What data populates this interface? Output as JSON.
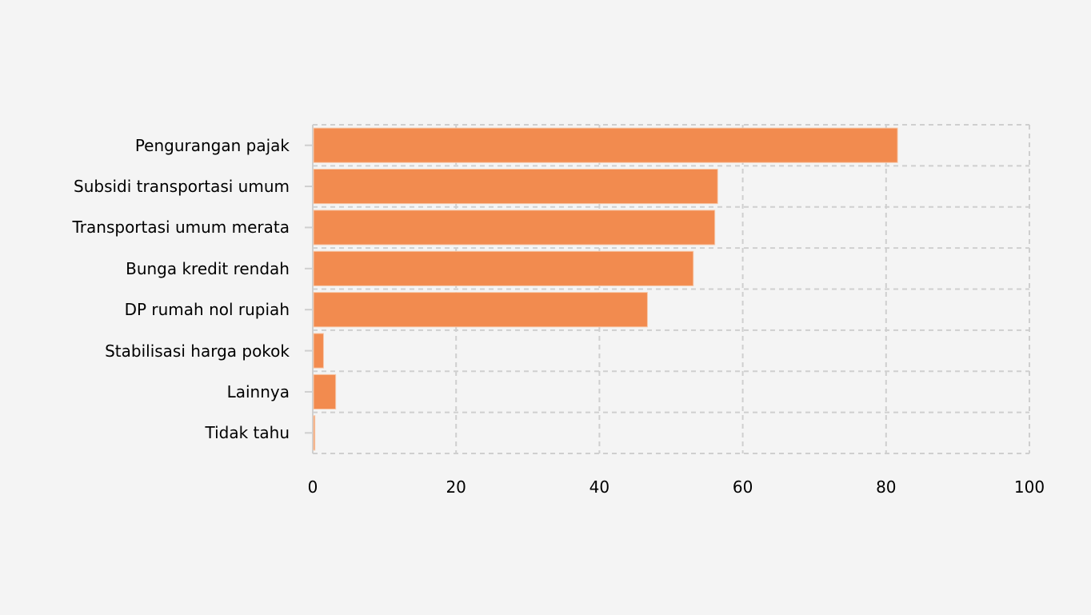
{
  "chart_data": {
    "type": "bar",
    "orientation": "horizontal",
    "title": "",
    "xlabel": "",
    "ylabel": "",
    "categories": [
      "Pengurangan pajak",
      "Subsidi transportasi umum",
      "Transportasi umum merata",
      "Bunga kredit rendah",
      "DP rumah nol rupiah",
      "Stabilisasi harga pokok",
      "Lainnya",
      "Tidak tahu"
    ],
    "values": [
      81.6,
      56.5,
      56.1,
      53.1,
      46.7,
      1.5,
      3.2,
      0.3
    ],
    "xlim": [
      0,
      100
    ],
    "xticks": [
      "0",
      "20",
      "40",
      "60",
      "80",
      "100"
    ],
    "grid": true,
    "grid_style": "dashed",
    "legend": "none",
    "bar_color": "#f28b4f",
    "background": "#f4f4f4"
  }
}
